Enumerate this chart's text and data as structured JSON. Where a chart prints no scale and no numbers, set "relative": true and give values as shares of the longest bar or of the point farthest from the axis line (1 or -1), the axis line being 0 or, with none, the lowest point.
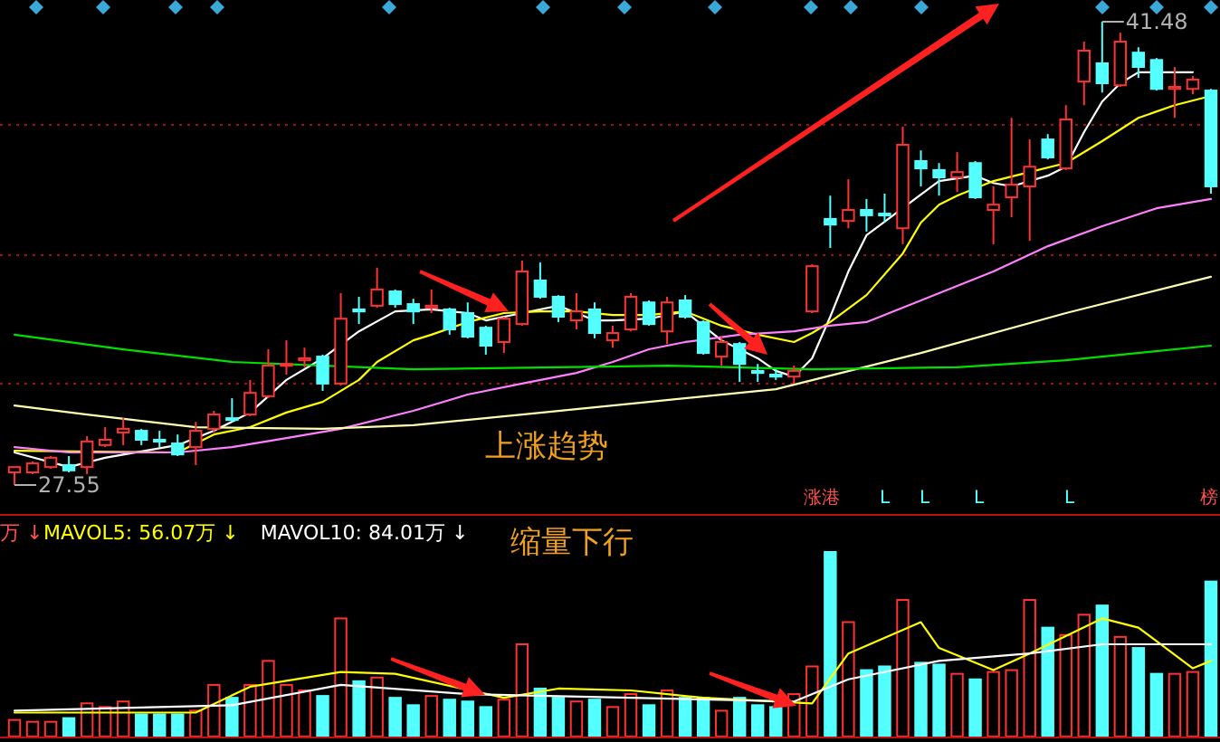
{
  "chart_data": [
    {
      "type": "candlestick",
      "grid": "y",
      "categories": [
        null,
        null,
        null,
        null,
        null,
        null,
        null,
        null,
        null,
        null,
        null,
        null,
        null,
        null,
        null,
        null,
        null,
        null,
        null,
        null,
        null,
        null,
        null,
        null,
        null,
        null,
        null,
        null,
        null,
        null,
        null,
        null,
        null,
        null,
        null,
        null,
        null,
        null,
        null,
        null,
        null,
        null,
        null,
        null,
        null,
        null,
        null,
        null,
        null,
        null,
        null,
        null,
        null,
        null,
        null,
        null,
        null,
        null,
        null,
        null,
        null,
        null,
        null,
        null,
        null,
        null,
        null
      ],
      "yticks": [
        {
          "value": 38.38,
          "label": null
        },
        {
          "value": 34.46,
          "label": null
        },
        {
          "value": 30.6,
          "label": null
        }
      ],
      "ohlc": [
        [
          27.93,
          28.09,
          27.55,
          28.09
        ],
        [
          27.93,
          28.26,
          27.88,
          28.2
        ],
        [
          28.09,
          28.42,
          28.04,
          28.37
        ],
        [
          28.15,
          28.42,
          27.93,
          27.99
        ],
        [
          28.09,
          29.02,
          27.88,
          28.86
        ],
        [
          28.75,
          29.29,
          28.69,
          28.91
        ],
        [
          29.13,
          29.56,
          28.75,
          29.24
        ],
        [
          29.18,
          29.24,
          28.75,
          28.91
        ],
        [
          28.91,
          29.18,
          28.69,
          28.86
        ],
        [
          28.8,
          29.07,
          28.42,
          28.47
        ],
        [
          28.69,
          29.45,
          28.15,
          29.18
        ],
        [
          29.24,
          29.78,
          29.13,
          29.67
        ],
        [
          29.56,
          30.16,
          29.45,
          29.51
        ],
        [
          29.67,
          30.71,
          29.62,
          30.32
        ],
        [
          30.22,
          31.63,
          30.16,
          31.14
        ],
        [
          31.14,
          31.9,
          30.87,
          31.19
        ],
        [
          31.3,
          31.68,
          31.09,
          31.36
        ],
        [
          31.41,
          31.47,
          30.38,
          30.6
        ],
        [
          30.6,
          33.32,
          30.54,
          32.55
        ],
        [
          32.83,
          33.21,
          32.39,
          32.77
        ],
        [
          32.94,
          34.08,
          32.88,
          33.43
        ],
        [
          33.37,
          33.43,
          32.88,
          32.99
        ],
        [
          32.99,
          33.15,
          32.39,
          32.77
        ],
        [
          32.88,
          33.43,
          32.72,
          32.94
        ],
        [
          32.83,
          32.88,
          32.07,
          32.23
        ],
        [
          32.72,
          33.04,
          31.96,
          32.01
        ],
        [
          32.28,
          32.34,
          31.47,
          31.74
        ],
        [
          31.85,
          32.61,
          31.52,
          32.55
        ],
        [
          32.39,
          34.3,
          32.34,
          33.97
        ],
        [
          33.7,
          34.24,
          33.15,
          33.21
        ],
        [
          33.21,
          33.26,
          32.45,
          32.61
        ],
        [
          32.5,
          33.32,
          32.23,
          32.77
        ],
        [
          32.83,
          33.04,
          31.96,
          32.12
        ],
        [
          31.9,
          32.34,
          31.68,
          32.12
        ],
        [
          32.23,
          33.32,
          32.17,
          33.21
        ],
        [
          33.04,
          33.1,
          32.34,
          32.39
        ],
        [
          32.17,
          33.21,
          31.79,
          33.04
        ],
        [
          33.1,
          33.26,
          32.55,
          32.61
        ],
        [
          32.45,
          32.5,
          31.47,
          31.52
        ],
        [
          31.41,
          32.01,
          31.14,
          31.85
        ],
        [
          31.79,
          31.85,
          30.65,
          31.19
        ],
        [
          30.98,
          31.19,
          30.65,
          30.92
        ],
        [
          30.87,
          31.03,
          30.71,
          30.81
        ],
        [
          30.81,
          31.14,
          30.6,
          30.98
        ],
        [
          32.77,
          34.19,
          32.72,
          34.13
        ],
        [
          35.55,
          36.25,
          34.68,
          35.38
        ],
        [
          35.49,
          36.74,
          35.27,
          35.82
        ],
        [
          35.82,
          36.15,
          35.17,
          35.66
        ],
        [
          35.71,
          36.31,
          35.44,
          35.66
        ],
        [
          35.27,
          38.32,
          34.79,
          37.78
        ],
        [
          37.29,
          37.61,
          36.53,
          37.07
        ],
        [
          37.02,
          37.23,
          36.25,
          36.8
        ],
        [
          36.8,
          37.56,
          36.36,
          36.96
        ],
        [
          37.23,
          37.29,
          36.15,
          36.2
        ],
        [
          35.82,
          36.53,
          34.79,
          35.98
        ],
        [
          36.2,
          38.59,
          35.6,
          36.58
        ],
        [
          36.53,
          37.94,
          34.89,
          37.12
        ],
        [
          37.94,
          38.1,
          37.34,
          37.4
        ],
        [
          37.07,
          38.97,
          37.02,
          38.54
        ],
        [
          39.68,
          40.88,
          38.97,
          40.61
        ],
        [
          40.23,
          41.48,
          39.35,
          39.63
        ],
        [
          39.57,
          41.15,
          39.52,
          40.88
        ],
        [
          40.55,
          40.71,
          39.79,
          40.12
        ],
        [
          40.33,
          40.39,
          39.41,
          39.46
        ],
        [
          39.46,
          40.12,
          38.59,
          39.52
        ],
        [
          39.46,
          39.85,
          39.3,
          39.74
        ],
        [
          39.41,
          39.46,
          36.31,
          36.53
        ]
      ],
      "colors": [
        "#ff3232",
        "#ff3232",
        "#ff3232",
        "#54ffff",
        "#ff3232",
        "#ff3232",
        "#ff3232",
        "#54ffff",
        "#54ffff",
        "#54ffff",
        "#ff3232",
        "#ff3232",
        "#54ffff",
        "#ff3232",
        "#ff3232",
        "#ff3232",
        "#ff3232",
        "#54ffff",
        "#ff3232",
        "#54ffff",
        "#ff3232",
        "#54ffff",
        "#54ffff",
        "#ff3232",
        "#54ffff",
        "#54ffff",
        "#54ffff",
        "#ff3232",
        "#ff3232",
        "#54ffff",
        "#54ffff",
        "#ff3232",
        "#54ffff",
        "#ff3232",
        "#ff3232",
        "#54ffff",
        "#ff3232",
        "#54ffff",
        "#54ffff",
        "#ff3232",
        "#54ffff",
        "#54ffff",
        "#54ffff",
        "#ff3232",
        "#ff3232",
        "#54ffff",
        "#ff3232",
        "#54ffff",
        "#54ffff",
        "#ff3232",
        "#54ffff",
        "#54ffff",
        "#ff3232",
        "#54ffff",
        "#ff3232",
        "#ff3232",
        "#ff3232",
        "#54ffff",
        "#ff3232",
        "#ff3232",
        "#54ffff",
        "#ff3232",
        "#54ffff",
        "#54ffff",
        "#ff3232",
        "#ff3232",
        "#54ffff"
      ],
      "series": [
        {
          "type": "line",
          "color": "#ffffff",
          "values": [
            28.53,
            null,
            null,
            28.09,
            null,
            28.37,
            null,
            null,
            null,
            28.75,
            null,
            29.18,
            null,
            29.73,
            null,
            30.71,
            null,
            31.36,
            null,
            32.17,
            null,
            32.77,
            null,
            32.83,
            null,
            32.72,
            32.5,
            null,
            32.72,
            null,
            32.94,
            null,
            32.5,
            32.5,
            null,
            32.55,
            null,
            32.77,
            null,
            31.9,
            null,
            31.36,
            30.98,
            30.81,
            31.36,
            32.61,
            33.97,
            35.06,
            null,
            null,
            null,
            36.69,
            null,
            36.85,
            36.63,
            36.53,
            null,
            36.85,
            37.12,
            38.16,
            39.08,
            39.63,
            39.96,
            null,
            39.96,
            39.96,
            null
          ]
        },
        {
          "type": "line",
          "color": "#ffff00",
          "values": [
            28.58,
            null,
            null,
            null,
            null,
            null,
            null,
            null,
            null,
            28.53,
            null,
            29.07,
            null,
            29.29,
            null,
            29.73,
            null,
            30.05,
            null,
            30.71,
            31.25,
            null,
            31.9,
            32.07,
            null,
            32.45,
            null,
            32.72,
            null,
            32.77,
            null,
            32.77,
            null,
            32.66,
            null,
            32.66,
            null,
            32.77,
            null,
            32.34,
            null,
            32.07,
            null,
            31.85,
            32.12,
            32.45,
            null,
            33.26,
            null,
            34.51,
            35.44,
            35.98,
            36.25,
            null,
            36.69,
            null,
            36.96,
            null,
            37.23,
            null,
            37.89,
            null,
            38.59,
            null,
            38.97,
            null,
            39.25
          ]
        },
        {
          "type": "line",
          "color": "#ff80ff",
          "values": [
            28.69,
            null,
            null,
            28.53,
            null,
            null,
            null,
            null,
            null,
            28.53,
            null,
            null,
            28.69,
            null,
            null,
            28.96,
            null,
            null,
            29.24,
            null,
            null,
            null,
            29.78,
            null,
            null,
            30.27,
            null,
            null,
            30.6,
            null,
            null,
            30.92,
            null,
            31.25,
            null,
            31.63,
            null,
            31.85,
            null,
            null,
            32.07,
            null,
            null,
            32.17,
            null,
            32.34,
            null,
            32.45,
            null,
            32.88,
            null,
            33.32,
            null,
            null,
            33.97,
            null,
            null,
            34.73,
            null,
            null,
            35.33,
            null,
            null,
            35.87,
            null,
            null,
            36.15
          ]
        },
        {
          "type": "line",
          "color": "#ffffb0",
          "values": [
            29.94,
            null,
            null,
            null,
            29.67,
            null,
            null,
            null,
            null,
            null,
            29.29,
            null,
            null,
            null,
            null,
            null,
            null,
            29.24,
            null,
            null,
            null,
            null,
            29.35,
            null,
            null,
            null,
            null,
            null,
            29.67,
            null,
            null,
            null,
            null,
            null,
            null,
            30.05,
            null,
            null,
            null,
            null,
            null,
            null,
            30.43,
            null,
            null,
            null,
            null,
            null,
            null,
            null,
            31.52,
            null,
            null,
            null,
            null,
            null,
            null,
            null,
            32.72,
            null,
            null,
            null,
            null,
            null,
            null,
            null,
            33.81
          ]
        },
        {
          "type": "line",
          "color": "#00e000",
          "values": [
            32.07,
            null,
            null,
            null,
            null,
            null,
            31.63,
            null,
            null,
            null,
            null,
            null,
            31.25,
            null,
            null,
            null,
            null,
            null,
            null,
            null,
            null,
            null,
            31.03,
            null,
            null,
            null,
            null,
            null,
            null,
            null,
            31.09,
            null,
            null,
            null,
            null,
            null,
            31.14,
            null,
            null,
            null,
            null,
            null,
            null,
            null,
            31.03,
            null,
            null,
            null,
            null,
            null,
            null,
            null,
            31.09,
            null,
            null,
            null,
            null,
            null,
            31.3,
            null,
            null,
            null,
            null,
            null,
            null,
            null,
            31.74
          ]
        }
      ],
      "annotations": [
        "上涨趋势",
        "41.48",
        "27.55",
        "涨港",
        "L",
        "L",
        "L",
        "L",
        "榜"
      ]
    },
    {
      "type": "bar",
      "relative": true,
      "categories": [
        null,
        null,
        null,
        null,
        null,
        null,
        null,
        null,
        null,
        null,
        null,
        null,
        null,
        null,
        null,
        null,
        null,
        null,
        null,
        null,
        null,
        null,
        null,
        null,
        null,
        null,
        null,
        null,
        null,
        null,
        null,
        null,
        null,
        null,
        null,
        null,
        null,
        null,
        null,
        null,
        null,
        null,
        null,
        null,
        null,
        null,
        null,
        null,
        null,
        null,
        null,
        null,
        null,
        null,
        null,
        null,
        null,
        null,
        null,
        null,
        null,
        null,
        null,
        null,
        null,
        null,
        null
      ],
      "series": [
        {
          "type": "bar",
          "values": [
            0.09,
            0.08,
            0.08,
            0.1,
            0.18,
            0.16,
            0.19,
            0.12,
            0.12,
            0.12,
            0.14,
            0.28,
            0.21,
            0.28,
            0.41,
            0.28,
            0.25,
            0.22,
            0.64,
            0.3,
            0.32,
            0.21,
            0.17,
            0.22,
            0.2,
            0.19,
            0.16,
            0.2,
            0.5,
            0.26,
            0.21,
            0.19,
            0.2,
            0.16,
            0.23,
            0.17,
            0.25,
            0.21,
            0.21,
            0.14,
            0.21,
            0.17,
            0.16,
            0.23,
            0.38,
            1,
            0.62,
            0.36,
            0.38,
            0.74,
            0.4,
            0.39,
            0.34,
            0.31,
            0.35,
            0.36,
            0.74,
            0.59,
            0.55,
            0.66,
            0.71,
            0.54,
            0.48,
            0.34,
            0.34,
            0.35,
            0.84
          ],
          "colors": [
            "#ff3232",
            "#ff3232",
            "#ff3232",
            "#54ffff",
            "#ff3232",
            "#ff3232",
            "#ff3232",
            "#54ffff",
            "#54ffff",
            "#54ffff",
            "#ff3232",
            "#ff3232",
            "#54ffff",
            "#ff3232",
            "#ff3232",
            "#ff3232",
            "#ff3232",
            "#54ffff",
            "#ff3232",
            "#54ffff",
            "#ff3232",
            "#54ffff",
            "#54ffff",
            "#ff3232",
            "#54ffff",
            "#54ffff",
            "#54ffff",
            "#ff3232",
            "#ff3232",
            "#54ffff",
            "#54ffff",
            "#ff3232",
            "#54ffff",
            "#ff3232",
            "#ff3232",
            "#54ffff",
            "#ff3232",
            "#54ffff",
            "#54ffff",
            "#ff3232",
            "#54ffff",
            "#54ffff",
            "#54ffff",
            "#ff3232",
            "#ff3232",
            "#54ffff",
            "#ff3232",
            "#54ffff",
            "#54ffff",
            "#ff3232",
            "#54ffff",
            "#54ffff",
            "#ff3232",
            "#54ffff",
            "#ff3232",
            "#ff3232",
            "#ff3232",
            "#54ffff",
            "#ff3232",
            "#ff3232",
            "#54ffff",
            "#ff3232",
            "#54ffff",
            "#54ffff",
            "#ff3232",
            "#ff3232",
            "#54ffff"
          ]
        },
        {
          "type": "line",
          "name": "MAVOL5: 56.07万 ↓",
          "color": "#ffff00",
          "values": [
            0.13,
            null,
            null,
            null,
            null,
            null,
            null,
            null,
            null,
            null,
            0.13,
            null,
            null,
            0.27,
            null,
            null,
            null,
            null,
            0.35,
            null,
            null,
            0.34,
            null,
            null,
            null,
            null,
            null,
            0.21,
            null,
            null,
            0.26,
            null,
            null,
            null,
            0.25,
            null,
            null,
            null,
            0.21,
            null,
            null,
            null,
            null,
            null,
            0.18,
            null,
            0.45,
            null,
            null,
            null,
            0.62,
            0.48,
            null,
            null,
            0.36,
            null,
            0.45,
            null,
            null,
            null,
            0.64,
            null,
            0.59,
            null,
            null,
            0.37,
            0.41
          ]
        },
        {
          "type": "line",
          "name": "MAVOL10: 84.01万 ↓",
          "color": "#ffffff",
          "values": [
            0.14,
            null,
            null,
            null,
            null,
            null,
            null,
            null,
            null,
            null,
            null,
            null,
            0.17,
            null,
            null,
            null,
            null,
            null,
            0.28,
            null,
            null,
            null,
            null,
            null,
            null,
            0.23,
            null,
            null,
            null,
            null,
            null,
            null,
            null,
            null,
            0.21,
            null,
            null,
            null,
            null,
            null,
            null,
            null,
            null,
            0.19,
            null,
            null,
            0.31,
            null,
            null,
            null,
            null,
            0.41,
            null,
            null,
            null,
            null,
            0.45,
            null,
            null,
            null,
            0.5,
            null,
            null,
            null,
            0.5,
            null,
            0.5
          ]
        }
      ],
      "annotations": [
        "万 ↓",
        "缩量下行"
      ]
    }
  ]
}
